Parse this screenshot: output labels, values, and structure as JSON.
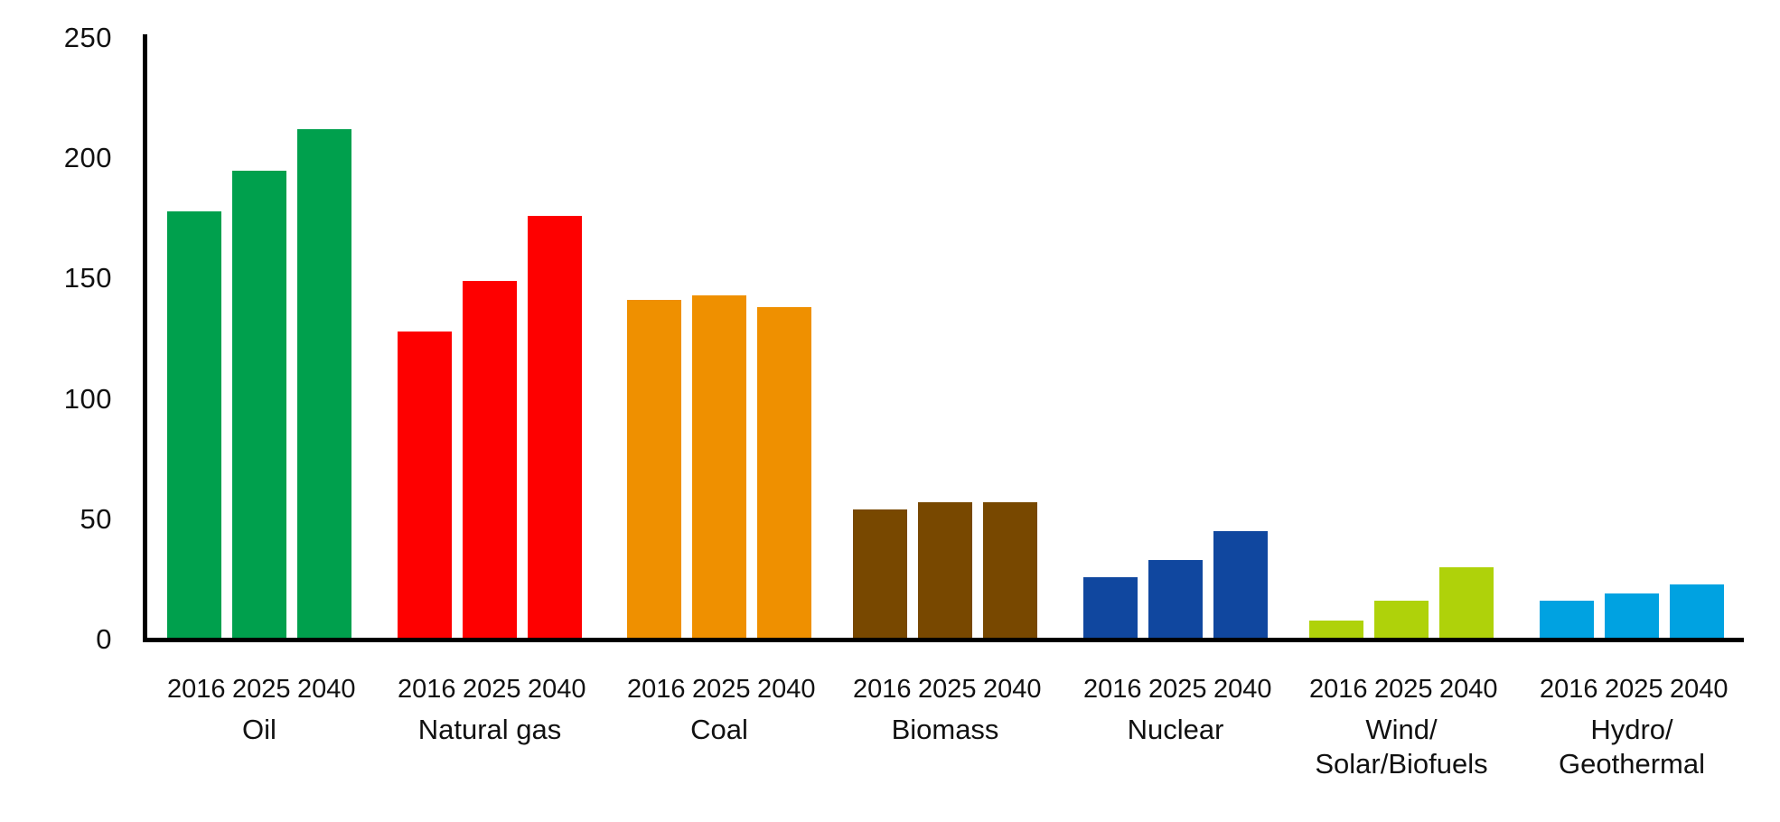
{
  "chart_data": {
    "type": "bar",
    "years": [
      "2016",
      "2025",
      "2040"
    ],
    "yticks": [
      0,
      50,
      100,
      150,
      200,
      250
    ],
    "ylim": [
      0,
      250
    ],
    "grid": false,
    "legend": false,
    "axis_color": "#000000",
    "text_color": "#111111",
    "groups": [
      {
        "category": "Oil",
        "category_lines": [
          "Oil"
        ],
        "color": "#00A04D",
        "values": [
          178,
          195,
          212
        ]
      },
      {
        "category": "Natural gas",
        "category_lines": [
          "Natural gas"
        ],
        "color": "#FE0000",
        "values": [
          128,
          149,
          176
        ]
      },
      {
        "category": "Coal",
        "category_lines": [
          "Coal"
        ],
        "color": "#EF9000",
        "values": [
          141,
          143,
          138
        ]
      },
      {
        "category": "Biomass",
        "category_lines": [
          "Biomass"
        ],
        "color": "#784800",
        "values": [
          54,
          57,
          57
        ]
      },
      {
        "category": "Nuclear",
        "category_lines": [
          "Nuclear"
        ],
        "color": "#10479F",
        "values": [
          26,
          33,
          45
        ]
      },
      {
        "category": "Wind/Solar/Biofuels",
        "category_lines": [
          "Wind/",
          "Solar/Biofuels"
        ],
        "color": "#AFD20A",
        "values": [
          8,
          16,
          30
        ]
      },
      {
        "category": "Hydro/Geothermal",
        "category_lines": [
          "Hydro/",
          "Geothermal"
        ],
        "color": "#00A2E1",
        "values": [
          16,
          19,
          23
        ]
      }
    ]
  }
}
